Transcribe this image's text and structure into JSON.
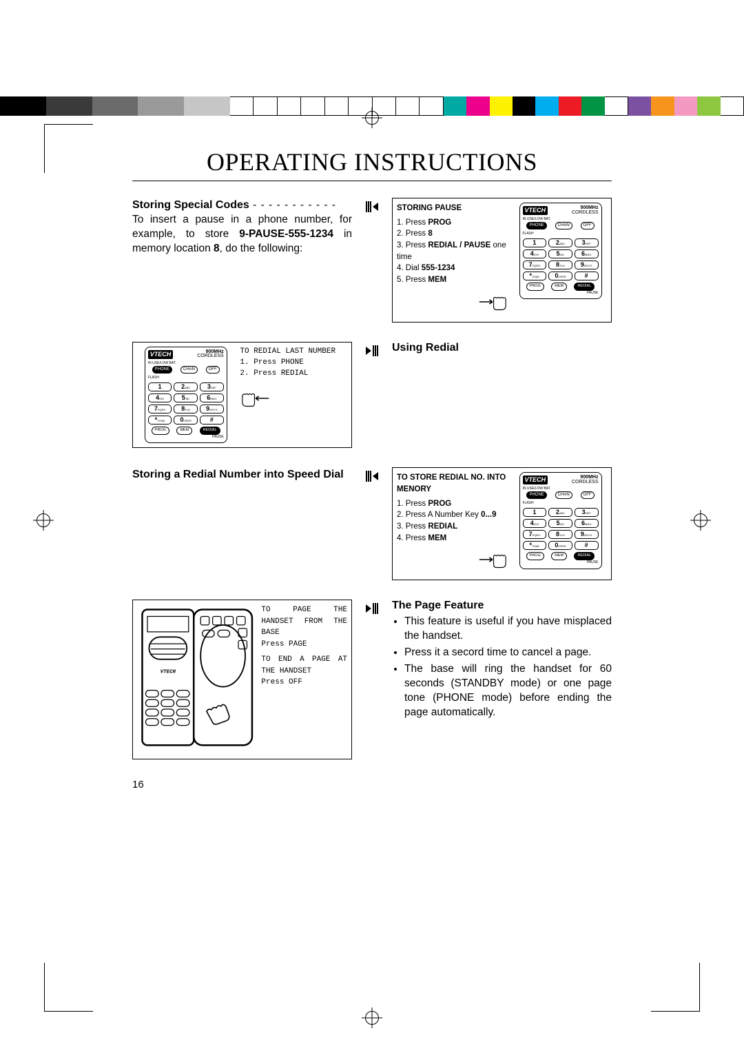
{
  "colorbar": [
    "#000000",
    "#000000",
    "#3a3a3a",
    "#3a3a3a",
    "#6b6b6b",
    "#6b6b6b",
    "#9a9a9a",
    "#9a9a9a",
    "#c6c6c6",
    "#c6c6c6",
    "#ffffff",
    "#ffffff",
    "#ffffff",
    "#ffffff",
    "#ffffff",
    "#ffffff",
    "#ffffff",
    "#ffffff",
    "#ffffff",
    "#00a9a2",
    "#ec008c",
    "#fff200",
    "#000000",
    "#00aeef",
    "#ed1c24",
    "#009444",
    "#ffffff",
    "#7c51a1",
    "#f7941d",
    "#f49ac1",
    "#8dc63f",
    "#ffffff"
  ],
  "title": "OPERATING INSTRUCTIONS",
  "section1": {
    "heading": "Storing Special Codes",
    "dash": " - - - - - - - - - - -",
    "p1_a": "To insert a pause in a phone number, for example, to store ",
    "p1_bold1": "9-PAUSE-555-1234",
    "p1_b": " in memory location ",
    "p1_bold2": "8",
    "p1_c": ", do the following:",
    "box_title": "STORING PAUSE",
    "steps": [
      {
        "n": "1. Press ",
        "b": "PROG"
      },
      {
        "n": "2. Press ",
        "b": "8"
      },
      {
        "n": "3. Press ",
        "b": "REDIAL / PAUSE",
        "t": " one time"
      },
      {
        "n": "4. Dial ",
        "b": "555-1234"
      },
      {
        "n": "5. Press ",
        "b": "MEM"
      }
    ]
  },
  "section2": {
    "heading": "Using Redial",
    "box_title": "TO REDIAL LAST NUMBER",
    "steps": [
      "1. Press PHONE",
      "2. Press REDIAL"
    ]
  },
  "section3": {
    "heading": "Storing a Redial Number into Speed Dial",
    "box_title": "TO STORE REDIAL NO. INTO MENORY",
    "steps": [
      {
        "n": "1. Press ",
        "b": "PROG"
      },
      {
        "n": "2. Press A Number Key ",
        "b": "0...9"
      },
      {
        "n": "3. Press ",
        "b": "REDIAL"
      },
      {
        "n": "4. Press ",
        "b": "MEM"
      }
    ]
  },
  "section4": {
    "heading": "The Page Feature",
    "bullets": [
      "This feature is useful if you have misplaced the handset.",
      "Press it a secord time to cancel a page.",
      "The base will ring the handset for 60 seconds (STANDBY mode) or one page tone (PHONE mode) before ending the page automatically."
    ],
    "box_l1": "TO PAGE THE HANDSET FROM THE BASE",
    "box_l2": "Press PAGE",
    "box_l3": "TO END A PAGE AT THE HANDSET",
    "box_l4": "Press OFF"
  },
  "phone": {
    "brand": "VTECH",
    "mhz_t": "900MHz",
    "mhz_b": "CORDLESS",
    "use": "IN USE/LOW BAT.",
    "btns": [
      "PHONE",
      "CHAN",
      "OFF"
    ],
    "flash": "FLASH",
    "keys": [
      [
        "1",
        ""
      ],
      [
        "2",
        "ABC"
      ],
      [
        "3",
        "DEF"
      ],
      [
        "4",
        "GHI"
      ],
      [
        "5",
        "JKL"
      ],
      [
        "6",
        "MNO"
      ],
      [
        "7",
        "PQRS"
      ],
      [
        "8",
        "TUV"
      ],
      [
        "9",
        "WXYZ"
      ],
      [
        "*",
        "TONE"
      ],
      [
        "0",
        "OPER"
      ],
      [
        "#",
        ""
      ]
    ],
    "bot": [
      "PROG",
      "MEM",
      "REDIAL"
    ],
    "pause": "PAUSE"
  },
  "page_num": "16"
}
